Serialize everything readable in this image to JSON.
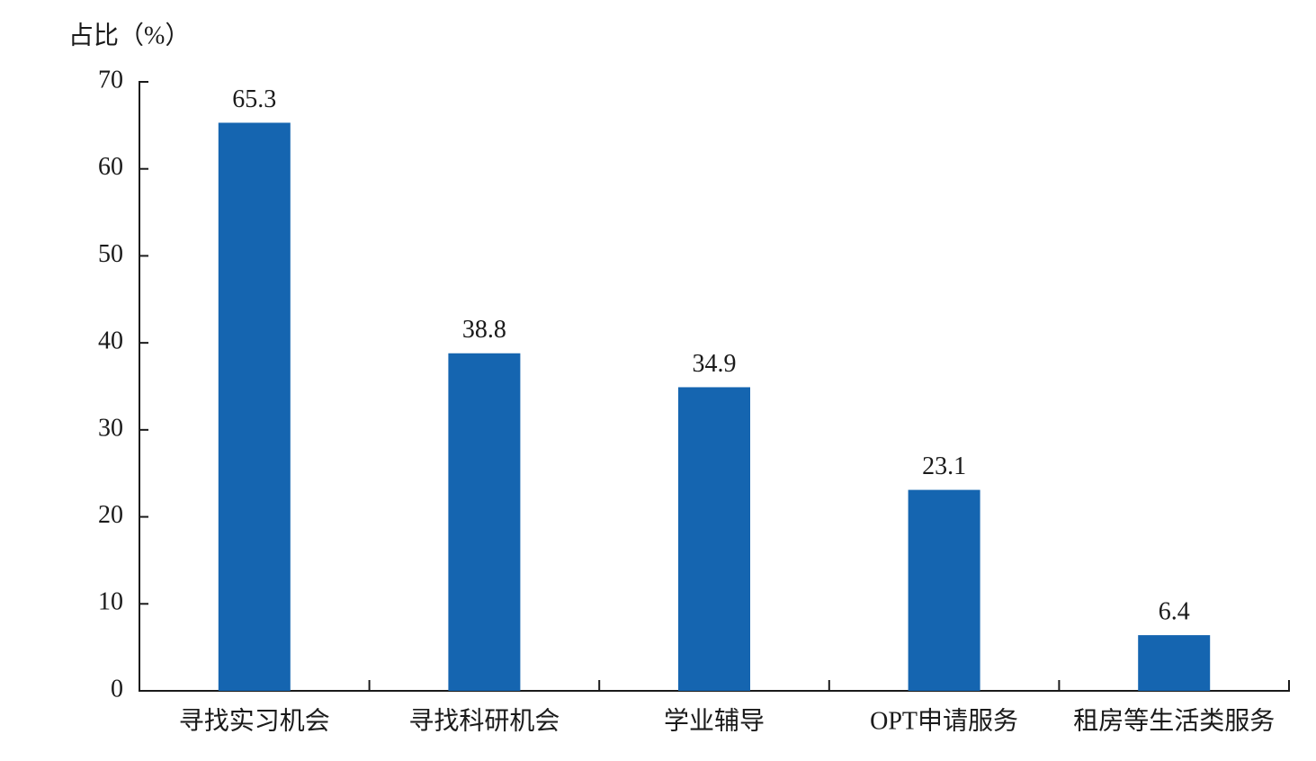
{
  "chart_data": {
    "type": "bar",
    "y_label": "占比（%）",
    "categories": [
      "寻找实习机会",
      "寻找科研机会",
      "学业辅导",
      "OPT申请服务",
      "租房等生活类服务"
    ],
    "values": [
      65.3,
      38.8,
      34.9,
      23.1,
      6.4
    ],
    "color": "#1565b0",
    "ylim": [
      0,
      70
    ],
    "yticks": [
      0,
      10,
      20,
      30,
      40,
      50,
      60,
      70
    ],
    "grid": false
  }
}
